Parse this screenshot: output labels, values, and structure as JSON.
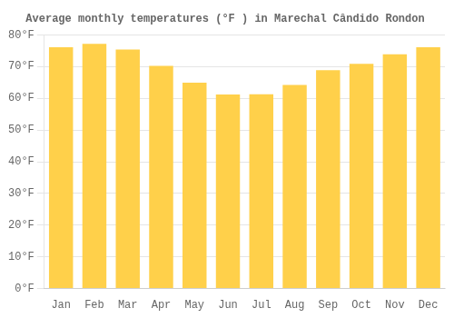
{
  "chart_data": {
    "type": "bar",
    "title": "Average monthly temperatures (°F ) in Marechal Cândido Rondon",
    "categories": [
      "Jan",
      "Feb",
      "Mar",
      "Apr",
      "May",
      "Jun",
      "Jul",
      "Aug",
      "Sep",
      "Oct",
      "Nov",
      "Dec"
    ],
    "values": [
      76.1,
      77.2,
      75.4,
      70.2,
      64.9,
      61.2,
      61.3,
      64.2,
      68.9,
      70.9,
      73.9,
      76.1
    ],
    "color": "#FFD04A",
    "ylim": [
      0,
      80
    ],
    "yticks": [
      {
        "value": 0,
        "label": "0°F"
      },
      {
        "value": 10,
        "label": "10°F"
      },
      {
        "value": 20,
        "label": "20°F"
      },
      {
        "value": 30,
        "label": "30°F"
      },
      {
        "value": 40,
        "label": "40°F"
      },
      {
        "value": 50,
        "label": "50°F"
      },
      {
        "value": 60,
        "label": "60°F"
      },
      {
        "value": 70,
        "label": "70°F"
      },
      {
        "value": 80,
        "label": "80°F"
      }
    ],
    "grid": true
  }
}
